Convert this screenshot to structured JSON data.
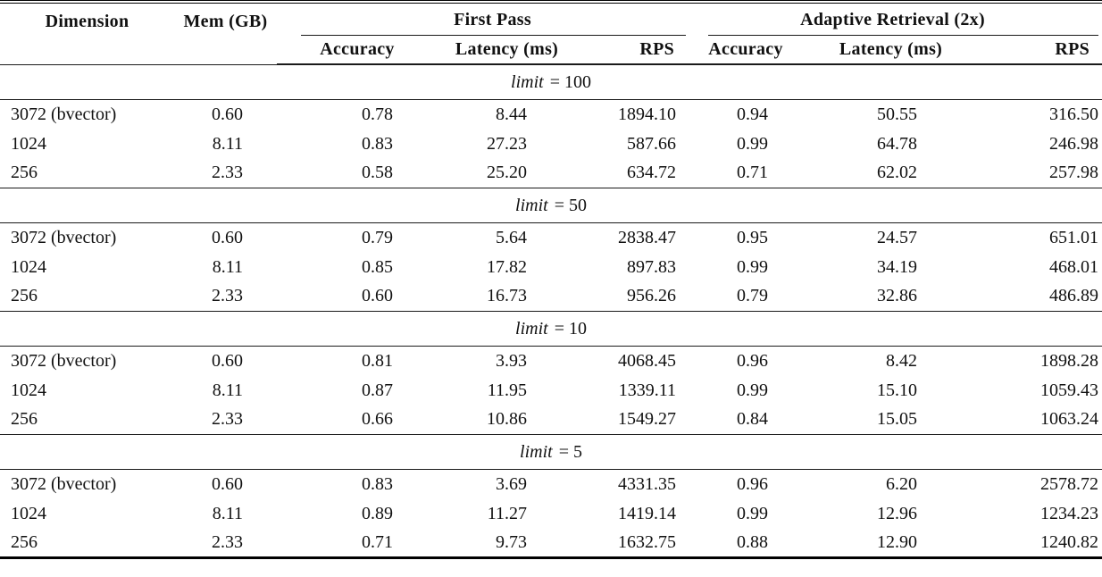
{
  "table": {
    "headers": {
      "dimension": "Dimension",
      "mem": "Mem (GB)",
      "first_pass": "First Pass",
      "adaptive": "Adaptive Retrieval (2x)",
      "accuracy": "Accuracy",
      "latency": "Latency (ms)",
      "rps": "RPS"
    },
    "sections": [
      {
        "var": "limit",
        "eq": "= 100",
        "rows": [
          {
            "dimension": "3072 (bvector)",
            "mem": "0.60",
            "fp_accuracy": "0.78",
            "fp_latency": "8.44",
            "fp_rps": "1894.10",
            "ar_accuracy": "0.94",
            "ar_latency": "50.55",
            "ar_rps": "316.50"
          },
          {
            "dimension": "1024",
            "mem": "8.11",
            "fp_accuracy": "0.83",
            "fp_latency": "27.23",
            "fp_rps": "587.66",
            "ar_accuracy": "0.99",
            "ar_latency": "64.78",
            "ar_rps": "246.98"
          },
          {
            "dimension": "256",
            "mem": "2.33",
            "fp_accuracy": "0.58",
            "fp_latency": "25.20",
            "fp_rps": "634.72",
            "ar_accuracy": "0.71",
            "ar_latency": "62.02",
            "ar_rps": "257.98"
          }
        ]
      },
      {
        "var": "limit",
        "eq": "= 50",
        "rows": [
          {
            "dimension": "3072 (bvector)",
            "mem": "0.60",
            "fp_accuracy": "0.79",
            "fp_latency": "5.64",
            "fp_rps": "2838.47",
            "ar_accuracy": "0.95",
            "ar_latency": "24.57",
            "ar_rps": "651.01"
          },
          {
            "dimension": "1024",
            "mem": "8.11",
            "fp_accuracy": "0.85",
            "fp_latency": "17.82",
            "fp_rps": "897.83",
            "ar_accuracy": "0.99",
            "ar_latency": "34.19",
            "ar_rps": "468.01"
          },
          {
            "dimension": "256",
            "mem": "2.33",
            "fp_accuracy": "0.60",
            "fp_latency": "16.73",
            "fp_rps": "956.26",
            "ar_accuracy": "0.79",
            "ar_latency": "32.86",
            "ar_rps": "486.89"
          }
        ]
      },
      {
        "var": "limit",
        "eq": "= 10",
        "rows": [
          {
            "dimension": "3072 (bvector)",
            "mem": "0.60",
            "fp_accuracy": "0.81",
            "fp_latency": "3.93",
            "fp_rps": "4068.45",
            "ar_accuracy": "0.96",
            "ar_latency": "8.42",
            "ar_rps": "1898.28"
          },
          {
            "dimension": "1024",
            "mem": "8.11",
            "fp_accuracy": "0.87",
            "fp_latency": "11.95",
            "fp_rps": "1339.11",
            "ar_accuracy": "0.99",
            "ar_latency": "15.10",
            "ar_rps": "1059.43"
          },
          {
            "dimension": "256",
            "mem": "2.33",
            "fp_accuracy": "0.66",
            "fp_latency": "10.86",
            "fp_rps": "1549.27",
            "ar_accuracy": "0.84",
            "ar_latency": "15.05",
            "ar_rps": "1063.24"
          }
        ]
      },
      {
        "var": "limit",
        "eq": "= 5",
        "rows": [
          {
            "dimension": "3072 (bvector)",
            "mem": "0.60",
            "fp_accuracy": "0.83",
            "fp_latency": "3.69",
            "fp_rps": "4331.35",
            "ar_accuracy": "0.96",
            "ar_latency": "6.20",
            "ar_rps": "2578.72"
          },
          {
            "dimension": "1024",
            "mem": "8.11",
            "fp_accuracy": "0.89",
            "fp_latency": "11.27",
            "fp_rps": "1419.14",
            "ar_accuracy": "0.99",
            "ar_latency": "12.96",
            "ar_rps": "1234.23"
          },
          {
            "dimension": "256",
            "mem": "2.33",
            "fp_accuracy": "0.71",
            "fp_latency": "9.73",
            "fp_rps": "1632.75",
            "ar_accuracy": "0.88",
            "ar_latency": "12.90",
            "ar_rps": "1240.82"
          }
        ]
      }
    ]
  }
}
